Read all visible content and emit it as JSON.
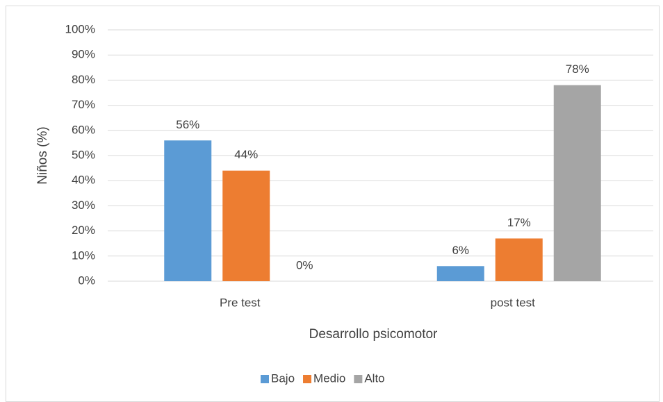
{
  "chart_data": {
    "type": "bar",
    "categories": [
      "Pre test",
      "post test"
    ],
    "series": [
      {
        "name": "Bajo",
        "color": "#5b9bd5",
        "values": [
          56,
          6
        ],
        "value_labels": [
          "56%",
          "6%"
        ]
      },
      {
        "name": "Medio",
        "color": "#ed7d31",
        "values": [
          44,
          17
        ],
        "value_labels": [
          "44%",
          "17%"
        ]
      },
      {
        "name": "Alto",
        "color": "#a5a5a5",
        "values": [
          0,
          78
        ],
        "value_labels": [
          "0%",
          "78%"
        ]
      }
    ],
    "x_label": "Desarrollo psicomotor",
    "y_label": "Niños (%)",
    "ylim": [
      0,
      100
    ],
    "yticks": [
      {
        "value": 0,
        "label": "0%"
      },
      {
        "value": 10,
        "label": "10%"
      },
      {
        "value": 20,
        "label": "20%"
      },
      {
        "value": 30,
        "label": "30%"
      },
      {
        "value": 40,
        "label": "40%"
      },
      {
        "value": 50,
        "label": "50%"
      },
      {
        "value": 60,
        "label": "60%"
      },
      {
        "value": 70,
        "label": "70%"
      },
      {
        "value": 80,
        "label": "80%"
      },
      {
        "value": 90,
        "label": "90%"
      },
      {
        "value": 100,
        "label": "100%"
      }
    ],
    "grid": true,
    "legend": "bottom"
  }
}
